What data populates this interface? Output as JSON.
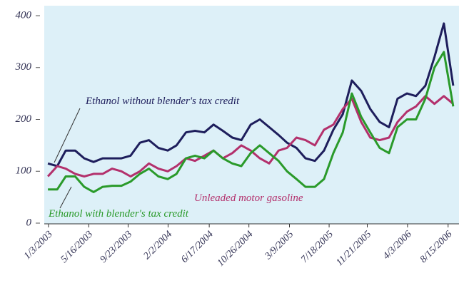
{
  "chart_data": {
    "type": "line",
    "x": [
      "1/1/2003",
      "2/1/2003",
      "3/1/2003",
      "4/1/2003",
      "5/1/2003",
      "6/1/2003",
      "7/1/2003",
      "8/1/2003",
      "9/1/2003",
      "10/1/2003",
      "11/1/2003",
      "12/1/2003",
      "1/1/2004",
      "2/1/2004",
      "3/1/2004",
      "4/1/2004",
      "5/1/2004",
      "6/1/2004",
      "7/1/2004",
      "8/1/2004",
      "9/1/2004",
      "10/1/2004",
      "11/1/2004",
      "12/1/2004",
      "1/1/2005",
      "2/1/2005",
      "3/1/2005",
      "4/1/2005",
      "5/1/2005",
      "6/1/2005",
      "7/1/2005",
      "8/1/2005",
      "9/1/2005",
      "10/1/2005",
      "11/1/2005",
      "12/1/2005",
      "1/1/2006",
      "2/1/2006",
      "3/1/2006",
      "4/1/2006",
      "5/1/2006",
      "6/1/2006",
      "7/1/2006",
      "8/1/2006",
      "9/1/2006"
    ],
    "series": [
      {
        "name": "Ethanol without blender's tax credit",
        "color": "#1e1e5c",
        "values": [
          115,
          110,
          140,
          140,
          125,
          118,
          125,
          125,
          125,
          130,
          155,
          160,
          145,
          140,
          150,
          175,
          178,
          175,
          190,
          178,
          165,
          160,
          190,
          200,
          185,
          170,
          155,
          145,
          125,
          120,
          140,
          180,
          210,
          275,
          255,
          220,
          195,
          185,
          240,
          250,
          245,
          265,
          320,
          385,
          265
        ]
      },
      {
        "name": "Unleaded motor gasoline",
        "color": "#b3306c",
        "values": [
          90,
          110,
          105,
          95,
          90,
          95,
          95,
          105,
          100,
          90,
          100,
          115,
          105,
          100,
          110,
          125,
          120,
          130,
          140,
          125,
          135,
          150,
          140,
          125,
          115,
          140,
          145,
          165,
          160,
          150,
          180,
          190,
          220,
          240,
          195,
          165,
          160,
          165,
          195,
          215,
          225,
          245,
          230,
          245,
          230
        ]
      },
      {
        "name": "Ethanol with blender's tax credit",
        "color": "#2a9a2a",
        "values": [
          65,
          65,
          90,
          90,
          70,
          60,
          70,
          72,
          72,
          80,
          95,
          105,
          90,
          85,
          95,
          125,
          130,
          125,
          140,
          125,
          115,
          110,
          135,
          150,
          135,
          120,
          100,
          85,
          70,
          70,
          85,
          135,
          175,
          250,
          205,
          175,
          145,
          135,
          185,
          200,
          200,
          240,
          300,
          330,
          225
        ]
      }
    ],
    "xlim": [
      "12/20/2002",
      "9/20/2006"
    ],
    "xticks": [
      "1/3/2003",
      "5/16/2003",
      "9/23/2003",
      "2/2/2004",
      "6/17/2004",
      "10/26/2004",
      "3/9/2005",
      "7/18/2005",
      "11/21/2005",
      "4/3/2006",
      "8/15/2006"
    ],
    "ylim": [
      0,
      400
    ],
    "yticks": [
      0,
      100,
      200,
      300,
      400
    ],
    "grid": false
  }
}
